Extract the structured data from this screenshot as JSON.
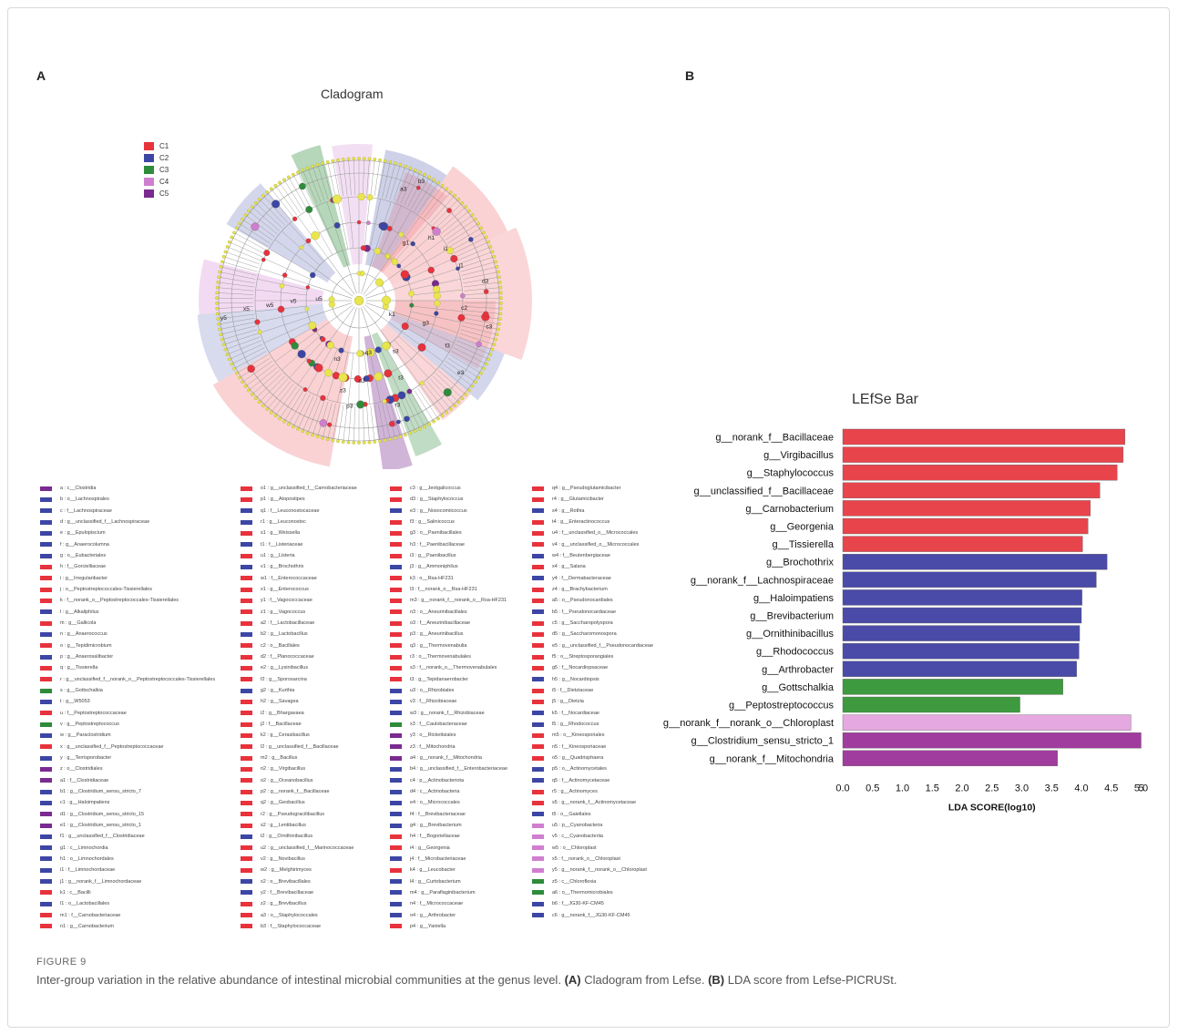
{
  "panel_a_label": "A",
  "panel_b_label": "B",
  "cladogram": {
    "title": "Cladogram",
    "groups": [
      {
        "name": "C1",
        "color": "#e8323c"
      },
      {
        "name": "C2",
        "color": "#3c46a5"
      },
      {
        "name": "C3",
        "color": "#2e8b3a"
      },
      {
        "name": "C4",
        "color": "#d07fd0"
      },
      {
        "name": "C5",
        "color": "#7a2a90"
      }
    ],
    "ring_labels": [
      "y5",
      "x5",
      "w5",
      "v5",
      "u5",
      "k1",
      "c2",
      "z3",
      "h1",
      "g1",
      "i1",
      "j1",
      "s3",
      "t3",
      "r3",
      "q3",
      "o3",
      "p3",
      "n3",
      "g3",
      "f3",
      "e3",
      "d3",
      "c3",
      "b3",
      "a3"
    ]
  },
  "legend_columns": [
    [
      {
        "text": "a : c__Clostridia",
        "color": "#7a2a90"
      },
      {
        "text": "b : o__Lachnospirales",
        "color": "#3c46a5"
      },
      {
        "text": "c : f__Lachnospiraceae",
        "color": "#3c46a5"
      },
      {
        "text": "d : g__unclassified_f__Lachnospiraceae",
        "color": "#3c46a5"
      },
      {
        "text": "e : g__Epulopiscium",
        "color": "#3c46a5"
      },
      {
        "text": "f : g__Anaerocolumna",
        "color": "#3c46a5"
      },
      {
        "text": "g : o__Eubacteriales",
        "color": "#3c46a5"
      },
      {
        "text": "h : f__Gorcielliaceae",
        "color": "#e8323c"
      },
      {
        "text": "i : g__Irregularibacter",
        "color": "#e8323c"
      },
      {
        "text": "j : o__Peptostreptococcales-Tissierellales",
        "color": "#e8323c"
      },
      {
        "text": "k : f__norank_o__Peptostreptococcales-Tissierellales",
        "color": "#e8323c"
      },
      {
        "text": "l : g__Alkaliphilus",
        "color": "#3c46a5"
      },
      {
        "text": "m : g__Gallicola",
        "color": "#e8323c"
      },
      {
        "text": "n : g__Anaerococcus",
        "color": "#3c46a5"
      },
      {
        "text": "o : g__Tepidimicrobium",
        "color": "#e8323c"
      },
      {
        "text": "p : g__Anaerosalibacter",
        "color": "#3c46a5"
      },
      {
        "text": "q : g__Tissierella",
        "color": "#e8323c"
      },
      {
        "text": "r : g__unclassified_f__norank_o__Peptostreptococcales-Tissierellales",
        "color": "#e8323c"
      },
      {
        "text": "s : g__Gottschalkia",
        "color": "#2e8b3a"
      },
      {
        "text": "t : g__W5053",
        "color": "#3c46a5"
      },
      {
        "text": "u : f__Peptostreptococcaceae",
        "color": "#e8323c"
      },
      {
        "text": "v : g__Peptostreptococcus",
        "color": "#2e8b3a"
      },
      {
        "text": "w : g__Paraclostridium",
        "color": "#3c46a5"
      },
      {
        "text": "x : g__unclassified_f__Peptostreptococcaceae",
        "color": "#e8323c"
      },
      {
        "text": "y : g__Terrisporobacter",
        "color": "#3c46a5"
      },
      {
        "text": "z : o__Clostridiales",
        "color": "#7a2a90"
      },
      {
        "text": "a1 : f__Clostridiaceae",
        "color": "#7a2a90"
      },
      {
        "text": "b1 : g__Clostridium_sensu_stricto_7",
        "color": "#3c46a5"
      },
      {
        "text": "c1 : g__Haloimpatiens",
        "color": "#3c46a5"
      },
      {
        "text": "d1 : g__Clostridium_sensu_stricto_15",
        "color": "#7a2a90"
      },
      {
        "text": "e1 : g__Clostridium_sensu_stricto_1",
        "color": "#7a2a90"
      },
      {
        "text": "f1 : g__unclassified_f__Clostridiaceae",
        "color": "#3c46a5"
      },
      {
        "text": "g1 : c__Limnochordia",
        "color": "#3c46a5"
      },
      {
        "text": "h1 : o__Limnochordales",
        "color": "#3c46a5"
      },
      {
        "text": "i1 : f__Limnochordaceae",
        "color": "#3c46a5"
      },
      {
        "text": "j1 : g__norank_f__Limnochordaceae",
        "color": "#3c46a5"
      },
      {
        "text": "k1 : c__Bacilli",
        "color": "#e8323c"
      },
      {
        "text": "l1 : o__Lactobacillales",
        "color": "#3c46a5"
      },
      {
        "text": "m1 : f__Carnobacteriaceae",
        "color": "#e8323c"
      },
      {
        "text": "n1 : g__Carnobacterium",
        "color": "#e8323c"
      }
    ],
    [
      {
        "text": "o1 : g__unclassified_f__Carnobacteriaceae",
        "color": "#e8323c"
      },
      {
        "text": "p1 : g__Atopostipes",
        "color": "#e8323c"
      },
      {
        "text": "q1 : f__Leuconostocaceae",
        "color": "#3c46a5"
      },
      {
        "text": "r1 : g__Leuconostoc",
        "color": "#3c46a5"
      },
      {
        "text": "s1 : g__Weissella",
        "color": "#e8323c"
      },
      {
        "text": "t1 : f__Listeriaceae",
        "color": "#3c46a5"
      },
      {
        "text": "u1 : g__Listeria",
        "color": "#e8323c"
      },
      {
        "text": "v1 : g__Brochothrix",
        "color": "#3c46a5"
      },
      {
        "text": "w1 : f__Enterococcaceae",
        "color": "#e8323c"
      },
      {
        "text": "x1 : g__Enterococcus",
        "color": "#e8323c"
      },
      {
        "text": "y1 : f__Vagococcaceae",
        "color": "#e8323c"
      },
      {
        "text": "z1 : g__Vagococcus",
        "color": "#e8323c"
      },
      {
        "text": "a2 : f__Lactobacillaceae",
        "color": "#e8323c"
      },
      {
        "text": "b2 : g__Lactobacillus",
        "color": "#3c46a5"
      },
      {
        "text": "c2 : o__Bacillales",
        "color": "#e8323c"
      },
      {
        "text": "d2 : f__Planococcaceae",
        "color": "#e8323c"
      },
      {
        "text": "e2 : g__Lysinibacillus",
        "color": "#e8323c"
      },
      {
        "text": "f2 : g__Sporosarcina",
        "color": "#e8323c"
      },
      {
        "text": "g2 : g__Kurthia",
        "color": "#3c46a5"
      },
      {
        "text": "h2 : g__Savagea",
        "color": "#e8323c"
      },
      {
        "text": "i2 : g__Bhargavaea",
        "color": "#e8323c"
      },
      {
        "text": "j2 : f__Bacillaceae",
        "color": "#e8323c"
      },
      {
        "text": "k2 : g__Cerasibacillus",
        "color": "#e8323c"
      },
      {
        "text": "l2 : g__unclassified_f__Bacillaceae",
        "color": "#e8323c"
      },
      {
        "text": "m2 : g__Bacillus",
        "color": "#e8323c"
      },
      {
        "text": "n2 : g__Virgibacillus",
        "color": "#e8323c"
      },
      {
        "text": "o2 : g__Oceanobacillus",
        "color": "#e8323c"
      },
      {
        "text": "p2 : g__norank_f__Bacillaceae",
        "color": "#e8323c"
      },
      {
        "text": "q2 : g__Geobacillus",
        "color": "#e8323c"
      },
      {
        "text": "r2 : g__Pseudogracilibacillus",
        "color": "#e8323c"
      },
      {
        "text": "s2 : g__Lentibacillus",
        "color": "#e8323c"
      },
      {
        "text": "t2 : g__Ornithinibacillus",
        "color": "#3c46a5"
      },
      {
        "text": "u2 : g__unclassified_f__Marinococcaceae",
        "color": "#e8323c"
      },
      {
        "text": "v2 : g__Novibacillus",
        "color": "#e8323c"
      },
      {
        "text": "w2 : g__Melghirimyces",
        "color": "#e8323c"
      },
      {
        "text": "x2 : o__Brevibacillales",
        "color": "#3c46a5"
      },
      {
        "text": "y2 : f__Brevibacillaceae",
        "color": "#3c46a5"
      },
      {
        "text": "z2 : g__Brevibacillus",
        "color": "#e8323c"
      },
      {
        "text": "a3 : o__Staphylococcales",
        "color": "#e8323c"
      },
      {
        "text": "b3 : f__Staphylococcaceae",
        "color": "#e8323c"
      }
    ],
    [
      {
        "text": "c3 : g__Jeotgalicoccus",
        "color": "#e8323c"
      },
      {
        "text": "d3 : g__Staphylococcus",
        "color": "#e8323c"
      },
      {
        "text": "e3 : g__Nosocomiicoccus",
        "color": "#3c46a5"
      },
      {
        "text": "f3 : g__Salinicoccus",
        "color": "#e8323c"
      },
      {
        "text": "g3 : o__Paenibacillales",
        "color": "#e8323c"
      },
      {
        "text": "h3 : f__Paenibacillaceae",
        "color": "#e8323c"
      },
      {
        "text": "i3 : g__Paenibacillus",
        "color": "#e8323c"
      },
      {
        "text": "j3 : g__Ammoniphilus",
        "color": "#3c46a5"
      },
      {
        "text": "k3 : o__Rsa-HF231",
        "color": "#e8323c"
      },
      {
        "text": "l3 : f__norank_o__Rsa-HF231",
        "color": "#e8323c"
      },
      {
        "text": "m3 : g__norank_f__norank_o__Rsa-HF231",
        "color": "#e8323c"
      },
      {
        "text": "n3 : o__Aneurinibacillales",
        "color": "#e8323c"
      },
      {
        "text": "o3 : f__Aneurinibacillaceae",
        "color": "#e8323c"
      },
      {
        "text": "p3 : g__Aneurinibacillus",
        "color": "#e8323c"
      },
      {
        "text": "q3 : g__Thermovenabulia",
        "color": "#e8323c"
      },
      {
        "text": "r3 : o__Thermovenabulales",
        "color": "#e8323c"
      },
      {
        "text": "s3 : f__norank_o__Thermovenabulales",
        "color": "#e8323c"
      },
      {
        "text": "t3 : g__Tepidanaerobacter",
        "color": "#e8323c"
      },
      {
        "text": "u3 : o__Rhizobiales",
        "color": "#3c46a5"
      },
      {
        "text": "v3 : f__Rhizobiaceae",
        "color": "#3c46a5"
      },
      {
        "text": "w3 : g__norank_f__Rhizobiaceae",
        "color": "#3c46a5"
      },
      {
        "text": "x3 : f__Caulobacteraceae",
        "color": "#2e8b3a"
      },
      {
        "text": "y3 : o__Rickettsiales",
        "color": "#7a2a90"
      },
      {
        "text": "z3 : f__Mitochondria",
        "color": "#7a2a90"
      },
      {
        "text": "a4 : g__norank_f__Mitochondria",
        "color": "#7a2a90"
      },
      {
        "text": "b4 : g__unclassified_f__Enterobacteriaceae",
        "color": "#3c46a5"
      },
      {
        "text": "c4 : p__Actinobacteriota",
        "color": "#3c46a5"
      },
      {
        "text": "d4 : c__Actinobacteria",
        "color": "#3c46a5"
      },
      {
        "text": "e4 : o__Micrococcales",
        "color": "#3c46a5"
      },
      {
        "text": "f4 : f__Brevibacteriaceae",
        "color": "#3c46a5"
      },
      {
        "text": "g4 : g__Brevibacterium",
        "color": "#3c46a5"
      },
      {
        "text": "h4 : f__Bogoriellaceae",
        "color": "#e8323c"
      },
      {
        "text": "i4 : g__Georgenia",
        "color": "#e8323c"
      },
      {
        "text": "j4 : f__Microbacteriaceae",
        "color": "#3c46a5"
      },
      {
        "text": "k4 : g__Leucobacter",
        "color": "#e8323c"
      },
      {
        "text": "l4 : g__Curtobacterium",
        "color": "#3c46a5"
      },
      {
        "text": "m4 : g__Paraflaginibacterium",
        "color": "#3c46a5"
      },
      {
        "text": "n4 : f__Micrococcaceae",
        "color": "#3c46a5"
      },
      {
        "text": "o4 : g__Arthrobacter",
        "color": "#3c46a5"
      },
      {
        "text": "p4 : g__Yaniella",
        "color": "#e8323c"
      }
    ],
    [
      {
        "text": "q4 : g__Pseudoglutamicibacter",
        "color": "#e8323c"
      },
      {
        "text": "r4 : g__Glutamicibacter",
        "color": "#e8323c"
      },
      {
        "text": "s4 : g__Rothia",
        "color": "#3c46a5"
      },
      {
        "text": "t4 : g__Enteractinococcus",
        "color": "#e8323c"
      },
      {
        "text": "u4 : f__unclassified_o__Micrococcales",
        "color": "#e8323c"
      },
      {
        "text": "v4 : g__unclassified_o__Micrococcales",
        "color": "#e8323c"
      },
      {
        "text": "w4 : f__Beutenbergiaceae",
        "color": "#3c46a5"
      },
      {
        "text": "x4 : g__Salana",
        "color": "#e8323c"
      },
      {
        "text": "y4 : f__Dermabacteraceae",
        "color": "#3c46a5"
      },
      {
        "text": "z4 : g__Brachybacterium",
        "color": "#e8323c"
      },
      {
        "text": "a5 : o__Pseudonocardiales",
        "color": "#e8323c"
      },
      {
        "text": "b5 : f__Pseudonocardiaceae",
        "color": "#3c46a5"
      },
      {
        "text": "c5 : g__Saccharopolyspora",
        "color": "#e8323c"
      },
      {
        "text": "d5 : g__Saccharomonospora",
        "color": "#e8323c"
      },
      {
        "text": "e5 : g__unclassified_f__Pseudonocardiaceae",
        "color": "#e8323c"
      },
      {
        "text": "f5 : o__Streptosporangiales",
        "color": "#e8323c"
      },
      {
        "text": "g5 : f__Nocardiopsaceae",
        "color": "#e8323c"
      },
      {
        "text": "h5 : g__Nocardiopsis",
        "color": "#3c46a5"
      },
      {
        "text": "i5 : f__Dietziaceae",
        "color": "#e8323c"
      },
      {
        "text": "j5 : g__Dietzia",
        "color": "#e8323c"
      },
      {
        "text": "k5 : f__Nocardiaceae",
        "color": "#3c46a5"
      },
      {
        "text": "l5 : g__Rhodococcus",
        "color": "#3c46a5"
      },
      {
        "text": "m5 : o__Kineosporiales",
        "color": "#e8323c"
      },
      {
        "text": "n5 : f__Kineosporiaceae",
        "color": "#e8323c"
      },
      {
        "text": "o5 : g__Quadrisphaera",
        "color": "#e8323c"
      },
      {
        "text": "p5 : o__Actinomycetales",
        "color": "#3c46a5"
      },
      {
        "text": "q5 : f__Actinomycetaceae",
        "color": "#3c46a5"
      },
      {
        "text": "r5 : g__Actinomyces",
        "color": "#e8323c"
      },
      {
        "text": "s5 : g__norank_f__Actinomycetaceae",
        "color": "#e8323c"
      },
      {
        "text": "t5 : o__Gaiellales",
        "color": "#3c46a5"
      },
      {
        "text": "u5 : p__Cyanobacteria",
        "color": "#d07fd0"
      },
      {
        "text": "v5 : c__Cyanobacteriia",
        "color": "#d07fd0"
      },
      {
        "text": "w5 : o__Chloroplast",
        "color": "#d07fd0"
      },
      {
        "text": "x5 : f__norank_o__Chloroplast",
        "color": "#d07fd0"
      },
      {
        "text": "y5 : g__norank_f__norank_o__Chloroplast",
        "color": "#d07fd0"
      },
      {
        "text": "z5 : c__Chloroflexia",
        "color": "#2e8b3a"
      },
      {
        "text": "a6 : o__Thermomicrobiales",
        "color": "#2e8b3a"
      },
      {
        "text": "b6 : f__JG30-KF-CM45",
        "color": "#3c46a5"
      },
      {
        "text": "c6 : g__norank_f__JG30-KF-CM45",
        "color": "#3c46a5"
      }
    ]
  ],
  "chart_data": {
    "type": "bar",
    "orientation": "horizontal",
    "title": "LEfSe Bar",
    "xlabel": "LDA SCORE(log10)",
    "ylabel": "",
    "xlim": [
      0,
      5
    ],
    "x_ticks": [
      "0.0",
      "0.5",
      "1.0",
      "1.5",
      "2.0",
      "2.5",
      "3.0",
      "3.5",
      "4.0",
      "4.5",
      "5.0",
      "5"
    ],
    "categories": [
      "g__norank_f__Bacillaceae",
      "g__Virgibacillus",
      "g__Staphylococcus",
      "g__unclassified_f__Bacillaceae",
      "g__Carnobacterium",
      "g__Georgenia",
      "g__Tissierella",
      "g__Brochothrix",
      "g__norank_f__Lachnospiraceae",
      "g__Haloimpatiens",
      "g__Brevibacterium",
      "g__Ornithinibacillus",
      "g__Rhodococcus",
      "g__Arthrobacter",
      "g__Gottschalkia",
      "g__Peptostreptococcus",
      "g__norank_f__norank_o__Chloroplast",
      "g__Clostridium_sensu_stricto_1",
      "g__norank_f__Mitochondria"
    ],
    "values": [
      4.73,
      4.7,
      4.6,
      4.31,
      4.15,
      4.11,
      4.02,
      4.43,
      4.25,
      4.01,
      4.0,
      3.97,
      3.96,
      3.92,
      3.69,
      2.97,
      4.83,
      5.0,
      3.6
    ],
    "groups": [
      "C1",
      "C1",
      "C1",
      "C1",
      "C1",
      "C1",
      "C1",
      "C2",
      "C2",
      "C2",
      "C2",
      "C2",
      "C2",
      "C2",
      "C3",
      "C3",
      "C4",
      "C5",
      "C5"
    ],
    "group_colors": {
      "C1": "#e8444c",
      "C2": "#4a4aa8",
      "C3": "#3e9a3e",
      "C4": "#e6a8e0",
      "C5": "#a03c9e"
    }
  },
  "caption": {
    "label": "FIGURE 9",
    "text_before_a": "Inter-group variation in the relative abundance of intestinal microbial communities at the genus level.",
    "a_marker": "(A)",
    "a_text": "Cladogram from Lefse.",
    "b_marker": "(B)",
    "b_text": "LDA score from Lefse-PICRUSt."
  }
}
